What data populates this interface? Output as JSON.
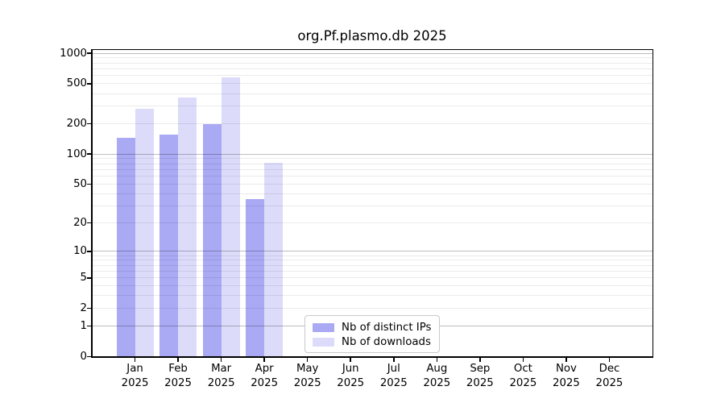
{
  "chart_data": {
    "type": "bar",
    "title": "org.Pf.plasmo.db 2025",
    "xlabel": "",
    "ylabel": "",
    "yscale": "log1p",
    "ylim": [
      0,
      1100
    ],
    "grid": "horizontal, drawn over bars, major lines at powers of ten",
    "legend_position": "lower center",
    "y_ticks": [
      0,
      1,
      2,
      5,
      10,
      20,
      50,
      100,
      200,
      500,
      1000
    ],
    "y_tick_labels": [
      "0",
      "1",
      "2",
      "5",
      "10",
      "20",
      "50",
      "100",
      "200",
      "500",
      "1000"
    ],
    "categories": [
      {
        "month": "Jan",
        "year": "2025"
      },
      {
        "month": "Feb",
        "year": "2025"
      },
      {
        "month": "Mar",
        "year": "2025"
      },
      {
        "month": "Apr",
        "year": "2025"
      },
      {
        "month": "May",
        "year": "2025"
      },
      {
        "month": "Jun",
        "year": "2025"
      },
      {
        "month": "Jul",
        "year": "2025"
      },
      {
        "month": "Aug",
        "year": "2025"
      },
      {
        "month": "Sep",
        "year": "2025"
      },
      {
        "month": "Oct",
        "year": "2025"
      },
      {
        "month": "Nov",
        "year": "2025"
      },
      {
        "month": "Dec",
        "year": "2025"
      }
    ],
    "series": [
      {
        "name": "Nb of distinct IPs",
        "color": "#a9a9f4",
        "values": [
          145,
          155,
          198,
          35,
          null,
          null,
          null,
          null,
          null,
          null,
          null,
          null
        ]
      },
      {
        "name": "Nb of downloads",
        "color": "#dcdcfa",
        "values": [
          283,
          365,
          575,
          81,
          null,
          null,
          null,
          null,
          null,
          null,
          null,
          null
        ]
      }
    ]
  }
}
